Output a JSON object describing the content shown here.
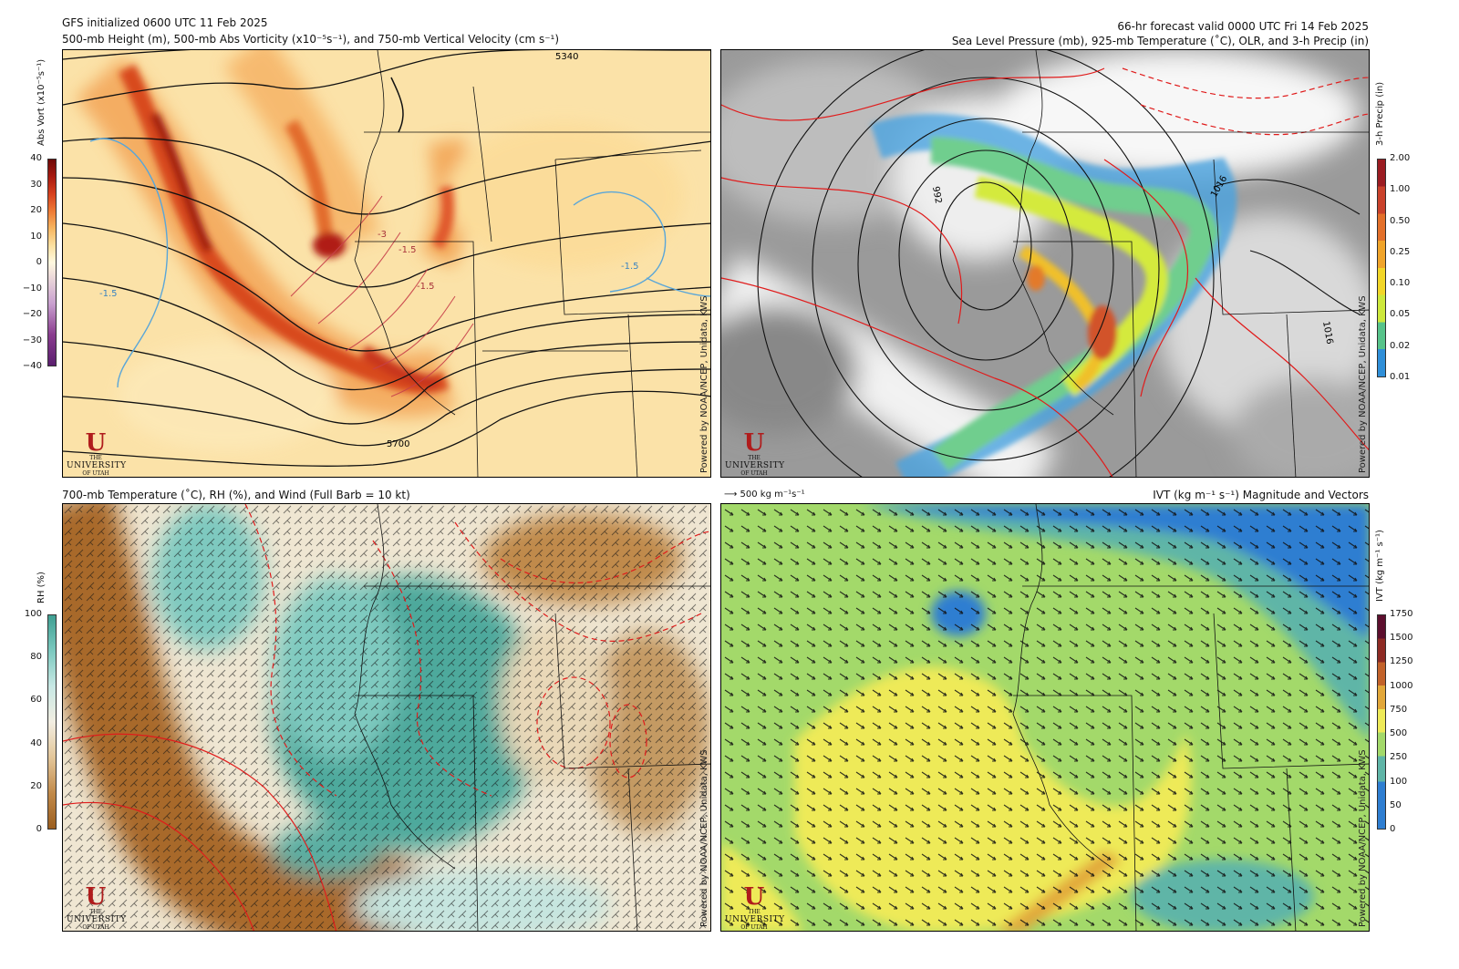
{
  "header": {
    "left_line1": "GFS initialized 0600 UTC 11 Feb 2025",
    "left_line2": "500-mb Height (m), 500-mb Abs Vorticity (x10⁻⁵s⁻¹), and 750-mb Vertical Velocity (cm s⁻¹)",
    "right_line1": "66-hr forecast valid 0000 UTC Fri 14 Feb 2025",
    "right_line2": "Sea Level Pressure (mb), 925-mb Temperature (˚C), OLR, and 3-h Precip (in)"
  },
  "panels": {
    "tl": {
      "colorbar_title": "Abs Vort (x10⁻⁵s⁻¹)",
      "ticks": [
        "40",
        "30",
        "20",
        "10",
        "0",
        "−10",
        "−20",
        "−30",
        "−40"
      ],
      "contour_labels": [
        "5340",
        "5700",
        "-3",
        "-1.5",
        "-1.5",
        "-1.5",
        "-1.5"
      ]
    },
    "tr": {
      "colorbar_title": "3-h Precip (in)",
      "ticks": [
        "2.00",
        "1.00",
        "0.50",
        "0.25",
        "0.10",
        "0.05",
        "0.02",
        "0.01"
      ],
      "contour_labels": [
        "992",
        "1016",
        "1016"
      ]
    },
    "bl": {
      "title": "700-mb Temperature (˚C), RH (%), and Wind (Full Barb = 10 kt)",
      "colorbar_title": "RH (%)",
      "ticks": [
        "100",
        "80",
        "60",
        "40",
        "20",
        "0"
      ]
    },
    "br": {
      "title": "IVT (kg m⁻¹ s⁻¹) Magnitude and Vectors",
      "ref_vector": "500 kg m⁻¹s⁻¹",
      "colorbar_title": "IVT (kg m⁻¹ s⁻¹)",
      "ticks": [
        "1750",
        "1500",
        "1250",
        "1000",
        "750",
        "500",
        "250",
        "100",
        "50",
        "0"
      ]
    }
  },
  "credit": "Powered by NOAA/NCEP, Unidata, KWS",
  "logo": {
    "mark": "U",
    "line1": "THE",
    "line2": "UNIVERSITY",
    "line3": "OF UTAH"
  },
  "colors": {
    "vort": [
      "#5a1e6e",
      "#8a3d8f",
      "#fff9e0",
      "#fbe0a0",
      "#f6b560",
      "#ee7a35",
      "#d6401e",
      "#a81a10",
      "#6e0a08"
    ],
    "precip": [
      "#2f8fd8",
      "#57c38a",
      "#cde83c",
      "#f2d628",
      "#f0a42a",
      "#e3702a",
      "#c9412b",
      "#9b1c22"
    ],
    "rh": [
      "#9b5e1f",
      "#c18a4a",
      "#e3c699",
      "#f2eee2",
      "#c8e8e4",
      "#7cc9bf",
      "#3f9f92"
    ],
    "ivt": [
      "#2e7ed1",
      "#5fb5a7",
      "#a3d96a",
      "#eeea58",
      "#e2a73a",
      "#c2622a",
      "#8e2b24",
      "#5d0f2e"
    ]
  }
}
